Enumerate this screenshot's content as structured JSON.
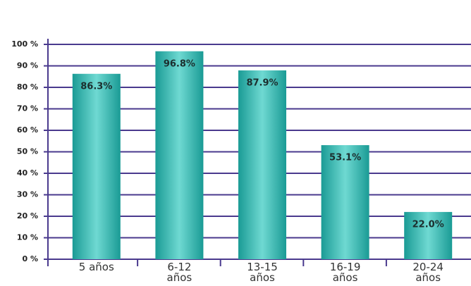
{
  "chart_data": {
    "type": "bar",
    "categories": [
      "5 años",
      "6-12 años",
      "13-15 años",
      "16-19 años",
      "20-24 años"
    ],
    "values": [
      86.3,
      96.8,
      87.9,
      53.1,
      22.0
    ],
    "value_labels": [
      "86.3%",
      "96.8%",
      "87.9%",
      "53.1%",
      "22.0%"
    ],
    "color": "#2bb3ab",
    "ylim": [
      0,
      100
    ],
    "yticks": [
      {
        "value": 0,
        "label": "0 %"
      },
      {
        "value": 10,
        "label": "10 %"
      },
      {
        "value": 20,
        "label": "20 %"
      },
      {
        "value": 30,
        "label": "30 %"
      },
      {
        "value": 40,
        "label": "40 %"
      },
      {
        "value": 50,
        "label": "50 %"
      },
      {
        "value": 60,
        "label": "60 %"
      },
      {
        "value": 70,
        "label": "70 %"
      },
      {
        "value": 80,
        "label": "80 %"
      },
      {
        "value": 90,
        "label": "90 %"
      },
      {
        "value": 100,
        "label": "100 %"
      }
    ],
    "grid": true
  }
}
